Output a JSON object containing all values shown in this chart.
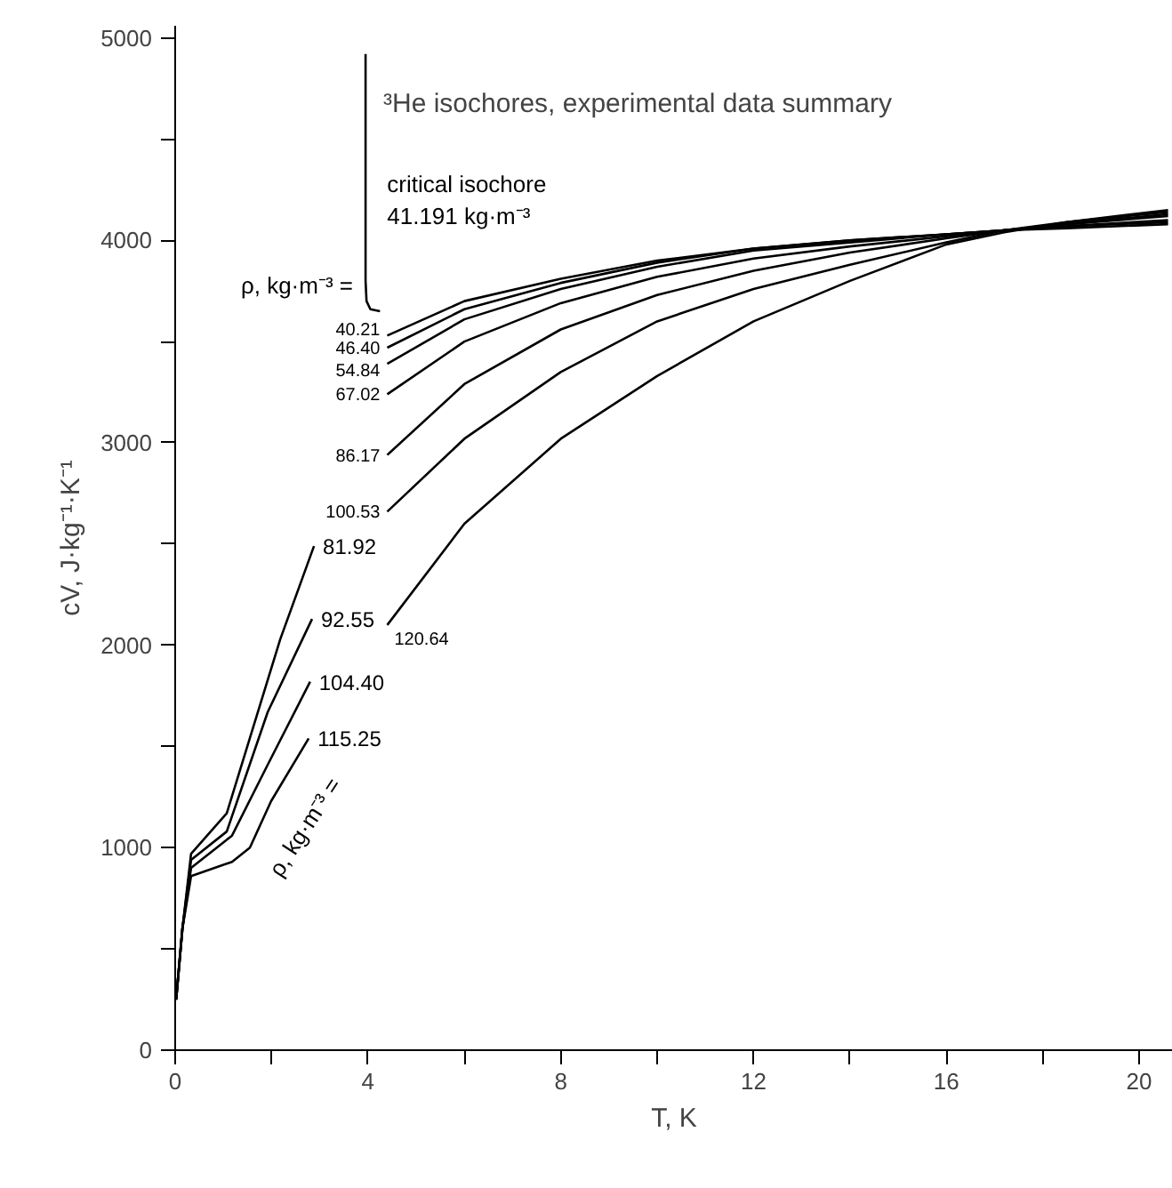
{
  "chart_data": {
    "type": "line",
    "title": "³He isochores, experimental data summary",
    "xlabel": "T, K",
    "ylabel": "cV, J·kg⁻¹·K⁻¹",
    "xlim": [
      0,
      20.7
    ],
    "ylim": [
      0,
      5060
    ],
    "xticks": [
      0,
      {
        "value": 2,
        "label": null
      },
      4,
      {
        "value": 6,
        "label": null
      },
      8,
      {
        "value": 10,
        "label": null
      },
      12,
      {
        "value": 14,
        "label": null
      },
      16,
      {
        "value": 18,
        "label": null
      },
      20
    ],
    "yticks": [
      0,
      {
        "value": 500,
        "label": null
      },
      1000,
      {
        "value": 1500,
        "label": null
      },
      2000,
      {
        "value": 2500,
        "label": null
      },
      3000,
      {
        "value": 3500,
        "label": null
      },
      4000,
      {
        "value": 4500,
        "label": null
      },
      5000
    ],
    "grid": false,
    "legend": false,
    "annotations": [
      "ρ, kg·m⁻³ =",
      "ρ, kg·m⁻³ =",
      {
        "text": "critical isochore\n41.191 kg·m⁻³",
        "x": 4.1,
        "y": 4200
      }
    ],
    "series": [
      {
        "name": "40.21",
        "color": "#000000",
        "x": [
          4.4,
          6,
          8,
          10,
          12,
          14,
          16,
          17.2,
          18.5,
          20.6
        ],
        "values": [
          3530,
          3700,
          3810,
          3900,
          3960,
          4000,
          4030,
          4050,
          4060,
          4080
        ]
      },
      {
        "name": "46.40",
        "color": "#000000",
        "x": [
          4.4,
          6,
          8,
          10,
          12,
          14,
          16,
          17.2,
          18.5,
          20.6
        ],
        "values": [
          3470,
          3660,
          3790,
          3890,
          3960,
          4000,
          4030,
          4050,
          4070,
          4090
        ]
      },
      {
        "name": "54.84",
        "color": "#000000",
        "x": [
          4.4,
          6,
          8,
          10,
          12,
          14,
          16,
          17.2,
          18.5,
          20.6
        ],
        "values": [
          3390,
          3610,
          3760,
          3870,
          3950,
          3990,
          4030,
          4050,
          4070,
          4100
        ]
      },
      {
        "name": "67.02",
        "color": "#000000",
        "x": [
          4.4,
          6,
          8,
          10,
          12,
          14,
          16,
          17.2,
          18.5,
          20.6
        ],
        "values": [
          3240,
          3500,
          3690,
          3820,
          3910,
          3970,
          4020,
          4050,
          4080,
          4120
        ]
      },
      {
        "name": "86.17",
        "color": "#000000",
        "x": [
          4.4,
          6,
          8,
          10,
          12,
          14,
          16,
          17.2,
          18.5,
          20.6
        ],
        "values": [
          2940,
          3290,
          3560,
          3730,
          3850,
          3940,
          4010,
          4050,
          4080,
          4130
        ]
      },
      {
        "name": "100.53",
        "color": "#000000",
        "x": [
          4.4,
          6,
          8,
          10,
          12,
          14,
          16,
          17.2,
          18.5,
          20.6
        ],
        "values": [
          2660,
          3020,
          3350,
          3600,
          3760,
          3880,
          3990,
          4050,
          4090,
          4140
        ]
      },
      {
        "name": "120.64",
        "color": "#000000",
        "x": [
          4.4,
          6,
          8,
          10,
          12,
          14,
          16,
          17.2,
          18.5,
          20.6
        ],
        "values": [
          2100,
          2600,
          3020,
          3330,
          3600,
          3800,
          3980,
          4040,
          4090,
          4150
        ]
      },
      {
        "name": "81.92",
        "color": "#000000",
        "x": [
          0.02,
          0.15,
          0.33,
          1.07,
          2.18,
          2.88
        ],
        "values": [
          250,
          600,
          970,
          1170,
          2030,
          2490
        ]
      },
      {
        "name": "92.55",
        "color": "#000000",
        "x": [
          0.02,
          0.15,
          0.33,
          1.07,
          1.92,
          2.84
        ],
        "values": [
          250,
          600,
          940,
          1080,
          1670,
          2130
        ]
      },
      {
        "name": "104.40",
        "color": "#000000",
        "x": [
          0.02,
          0.15,
          0.33,
          1.18,
          1.92,
          2.8
        ],
        "values": [
          250,
          600,
          900,
          1060,
          1410,
          1820
        ]
      },
      {
        "name": "115.25",
        "color": "#000000",
        "x": [
          0.02,
          0.15,
          0.33,
          1.18,
          1.55,
          1.99,
          2.77
        ],
        "values": [
          250,
          600,
          860,
          930,
          1000,
          1230,
          1540
        ]
      },
      {
        "color": "#000000",
        "x": [
          3.95,
          3.95,
          3.97,
          4.05,
          4.25
        ],
        "values": [
          4920,
          3800,
          3700,
          3660,
          3650
        ]
      }
    ]
  }
}
